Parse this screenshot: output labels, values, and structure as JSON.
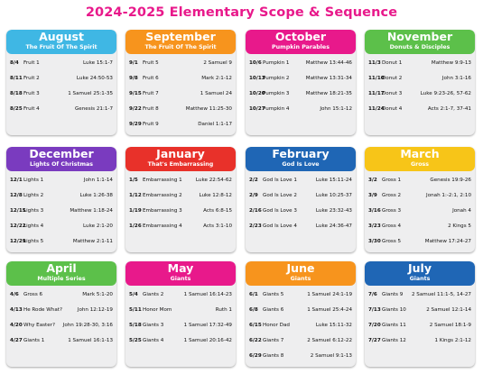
{
  "title": "2024-2025 Elementary Scope & Sequence",
  "months": [
    {
      "month": "August",
      "theme": "The Fruit Of The Spirit",
      "color": "#3fb7e4",
      "rows": [
        {
          "date": "8/4",
          "lesson": "Fruit 1",
          "ref": "Luke 15:1-7"
        },
        {
          "date": "8/11",
          "lesson": "Fruit 2",
          "ref": "Luke 24:50-53"
        },
        {
          "date": "8/18",
          "lesson": "Fruit 3",
          "ref": "1 Samuel 25:1-35"
        },
        {
          "date": "8/25",
          "lesson": "Fruit 4",
          "ref": "Genesis 21:1-7"
        }
      ]
    },
    {
      "month": "September",
      "theme": "The Fruit Of The Spirit",
      "color": "#f7941d",
      "rows": [
        {
          "date": "9/1",
          "lesson": "Fruit 5",
          "ref": "2 Samuel 9"
        },
        {
          "date": "9/8",
          "lesson": "Fruit 6",
          "ref": "Mark 2:1-12"
        },
        {
          "date": "9/15",
          "lesson": "Fruit 7",
          "ref": "1 Samuel 24"
        },
        {
          "date": "9/22",
          "lesson": "Fruit 8",
          "ref": "Matthew 11:25-30"
        },
        {
          "date": "9/29",
          "lesson": "Fruit 9",
          "ref": "Daniel 1:1-17"
        }
      ]
    },
    {
      "month": "October",
      "theme": "Pumpkin Parables",
      "color": "#e8198b",
      "rows": [
        {
          "date": "10/6",
          "lesson": "Pumpkin 1",
          "ref": "Matthew 13:44-46"
        },
        {
          "date": "10/13",
          "lesson": "Pumpkin 2",
          "ref": "Matthew 13:31-34"
        },
        {
          "date": "10/20",
          "lesson": "Pumpkin 3",
          "ref": "Matthew 18:21-35"
        },
        {
          "date": "10/27",
          "lesson": "Pumpkin 4",
          "ref": "John 15:1-12"
        }
      ]
    },
    {
      "month": "November",
      "theme": "Donuts & Disciples",
      "color": "#5cc04a",
      "rows": [
        {
          "date": "11/3",
          "lesson": "Donut 1",
          "ref": "Matthew 9:9-13"
        },
        {
          "date": "11/10",
          "lesson": "Donut 2",
          "ref": "John 3:1-16"
        },
        {
          "date": "11/17",
          "lesson": "Donut 3",
          "ref": "Luke 9:23-26, 57-62"
        },
        {
          "date": "11/24",
          "lesson": "Donut 4",
          "ref": "Acts 2:1-7, 37-41"
        }
      ]
    },
    {
      "month": "December",
      "theme": "Lights Of Christmas",
      "color": "#7a3bbf",
      "rows": [
        {
          "date": "12/1",
          "lesson": "Lights 1",
          "ref": "John 1:1-14"
        },
        {
          "date": "12/8",
          "lesson": "Lights 2",
          "ref": "Luke 1:26-38"
        },
        {
          "date": "12/15",
          "lesson": "Lights 3",
          "ref": "Matthew 1:18-24"
        },
        {
          "date": "12/22",
          "lesson": "Lights 4",
          "ref": "Luke 2:1-20"
        },
        {
          "date": "12/29",
          "lesson": "Lights 5",
          "ref": "Matthew 2:1-11"
        }
      ]
    },
    {
      "month": "January",
      "theme": "That's Embarrassing",
      "color": "#e8312a",
      "rows": [
        {
          "date": "1/5",
          "lesson": "Embarrassing 1",
          "ref": "Luke 22:54-62"
        },
        {
          "date": "1/12",
          "lesson": "Embarrassing 2",
          "ref": "Luke 12:8-12"
        },
        {
          "date": "1/19",
          "lesson": "Embarrassing 3",
          "ref": "Acts 6:8-15"
        },
        {
          "date": "1/26",
          "lesson": "Embarrassing 4",
          "ref": "Acts 3:1-10"
        }
      ]
    },
    {
      "month": "February",
      "theme": "God Is Love",
      "color": "#1f66b5",
      "rows": [
        {
          "date": "2/2",
          "lesson": "God Is Love 1",
          "ref": "Luke 15:11-24"
        },
        {
          "date": "2/9",
          "lesson": "God Is Love 2",
          "ref": "Luke 10:25-37"
        },
        {
          "date": "2/16",
          "lesson": "God Is Love 3",
          "ref": "Luke 23:32-43"
        },
        {
          "date": "2/23",
          "lesson": "God Is Love 4",
          "ref": "Luke 24:36-47"
        }
      ]
    },
    {
      "month": "March",
      "theme": "Gross",
      "color": "#f7c518",
      "rows": [
        {
          "date": "3/2",
          "lesson": "Gross 1",
          "ref": "Genesis 19:9-26"
        },
        {
          "date": "3/9",
          "lesson": "Gross 2",
          "ref": "Jonah 1:-2:1, 2:10"
        },
        {
          "date": "3/16",
          "lesson": "Gross 3",
          "ref": "Jonah 4"
        },
        {
          "date": "3/23",
          "lesson": "Gross 4",
          "ref": "2 Kings 5"
        },
        {
          "date": "3/30",
          "lesson": "Gross 5",
          "ref": "Matthew 17:24-27"
        }
      ]
    },
    {
      "month": "April",
      "theme": "Multiple Series",
      "color": "#5cc04a",
      "rows": [
        {
          "date": "4/6",
          "lesson": "Gross 6",
          "ref": "Mark 5:1-20"
        },
        {
          "date": "4/13",
          "lesson": "He Rode What?",
          "ref": "John 12:12-19"
        },
        {
          "date": "4/20",
          "lesson": "Why Easter?",
          "ref": "John 19:28-30, 3:16"
        },
        {
          "date": "4/27",
          "lesson": "Giants 1",
          "ref": "1 Samuel 16:1-13"
        }
      ]
    },
    {
      "month": "May",
      "theme": "Giants",
      "color": "#e8198b",
      "rows": [
        {
          "date": "5/4",
          "lesson": "Giants 2",
          "ref": "1 Samuel 16:14-23"
        },
        {
          "date": "5/11",
          "lesson": "Honor Mom",
          "ref": "Ruth 1"
        },
        {
          "date": "5/18",
          "lesson": "Giants 3",
          "ref": "1 Samuel 17:32-49"
        },
        {
          "date": "5/25",
          "lesson": "Giants 4",
          "ref": "1 Samuel 20:16-42"
        }
      ]
    },
    {
      "month": "June",
      "theme": "Giants",
      "color": "#f7941d",
      "rows": [
        {
          "date": "6/1",
          "lesson": "Giants 5",
          "ref": "1 Samuel 24:1-19"
        },
        {
          "date": "6/8",
          "lesson": "Giants 6",
          "ref": "1 Samuel 25:4-24"
        },
        {
          "date": "6/15",
          "lesson": "Honor Dad",
          "ref": "Luke 15:11-32"
        },
        {
          "date": "6/22",
          "lesson": "Giants 7",
          "ref": "2 Samuel 6:12-22"
        },
        {
          "date": "6/29",
          "lesson": "Giants 8",
          "ref": "2 Samuel 9:1-13"
        }
      ]
    },
    {
      "month": "July",
      "theme": "Giants",
      "color": "#1f66b5",
      "rows": [
        {
          "date": "7/6",
          "lesson": "Giants 9",
          "ref": "2 Samuel 11:1-5, 14-27"
        },
        {
          "date": "7/13",
          "lesson": "Giants 10",
          "ref": "2 Samuel 12:1-14"
        },
        {
          "date": "7/20",
          "lesson": "Giants 11",
          "ref": "2 Samuel 18:1-9"
        },
        {
          "date": "7/27",
          "lesson": "Giants 12",
          "ref": "1 Kings 2:1-12"
        }
      ]
    }
  ]
}
